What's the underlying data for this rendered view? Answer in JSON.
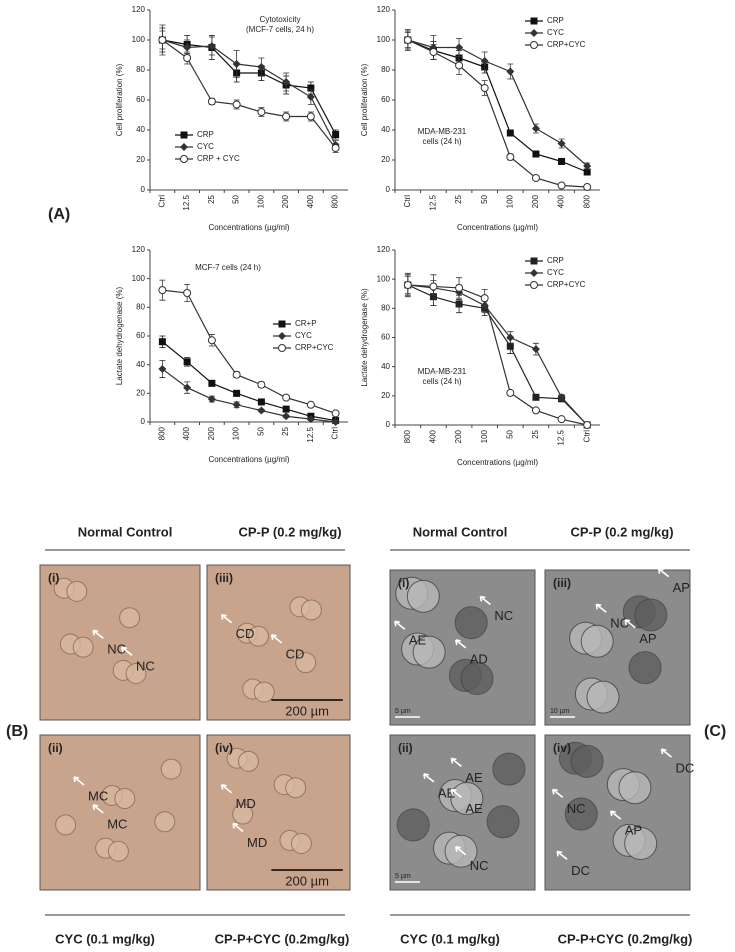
{
  "chart_data": [
    {
      "type": "line",
      "ylabel": "Cell proliferation (%)",
      "xlabel": "Concentrations (µg/ml)",
      "annotation": [
        "Cytotoxicity",
        "(MCF-7 cells, 24 h)"
      ],
      "categories": [
        "Ctrl",
        "12.5",
        "25",
        "50",
        "100",
        "200",
        "400",
        "800"
      ],
      "ylim": [
        0,
        120
      ],
      "yticks": [
        0,
        20,
        40,
        60,
        80,
        100,
        120
      ],
      "legend": "lower left",
      "series": [
        {
          "name": "CRP",
          "color": "#111111",
          "marker": "square",
          "values": [
            100,
            97,
            95,
            78,
            78,
            70,
            68,
            37
          ],
          "errors": [
            8,
            6,
            8,
            6,
            5,
            6,
            4,
            3
          ]
        },
        {
          "name": "CYC",
          "color": "#333333",
          "marker": "diamond",
          "values": [
            100,
            95,
            96,
            84,
            82,
            72,
            62,
            30
          ],
          "errors": [
            10,
            5,
            6,
            9,
            6,
            6,
            5,
            3
          ]
        },
        {
          "name": "CRP + CYC",
          "color": "#333333",
          "marker": "circle",
          "values": [
            100,
            88,
            59,
            57,
            52,
            49,
            49,
            28
          ],
          "errors": [
            6,
            4,
            2,
            3,
            3,
            3,
            3,
            3
          ]
        }
      ]
    },
    {
      "type": "line",
      "ylabel": "Cell proliferation (%)",
      "xlabel": "Concentrations (µg/ml)",
      "annotation": [
        "MDA-MB-231",
        "cells (24 h)"
      ],
      "categories": [
        "Ctrl",
        "12.5",
        "25",
        "50",
        "100",
        "200",
        "400",
        "800"
      ],
      "ylim": [
        0,
        120
      ],
      "yticks": [
        0,
        20,
        40,
        60,
        80,
        100,
        120
      ],
      "legend": "upper right",
      "series": [
        {
          "name": "CRP",
          "color": "#111111",
          "marker": "square",
          "values": [
            100,
            93,
            88,
            82,
            38,
            24,
            19,
            12
          ],
          "errors": [
            6,
            6,
            5,
            4,
            2,
            2,
            2,
            2
          ]
        },
        {
          "name": "CYC",
          "color": "#333333",
          "marker": "diamond",
          "values": [
            100,
            95,
            95,
            86,
            79,
            41,
            31,
            16
          ],
          "errors": [
            7,
            8,
            6,
            6,
            5,
            3,
            3,
            2
          ]
        },
        {
          "name": "CRP+CYC",
          "color": "#333333",
          "marker": "circle",
          "values": [
            100,
            92,
            83,
            68,
            22,
            8,
            3,
            2
          ],
          "errors": [
            5,
            5,
            6,
            5,
            2,
            1,
            1,
            1
          ]
        }
      ]
    },
    {
      "type": "line",
      "ylabel": "Lactate dehydrogenase (%)",
      "xlabel": "Concentrations (µg/ml)",
      "annotation": [
        "MCF-7 cells (24 h)"
      ],
      "categories": [
        "800",
        "400",
        "200",
        "100",
        "50",
        "25",
        "12.5",
        "Ctrl"
      ],
      "ylim": [
        0,
        120
      ],
      "yticks": [
        0,
        20,
        40,
        60,
        80,
        100,
        120
      ],
      "legend": "center right",
      "series": [
        {
          "name": "CR+P",
          "color": "#111111",
          "marker": "square",
          "values": [
            56,
            42,
            27,
            20,
            14,
            9,
            4,
            1
          ],
          "errors": [
            4,
            3,
            2,
            2,
            2,
            1,
            1,
            1
          ]
        },
        {
          "name": "CYC",
          "color": "#333333",
          "marker": "diamond",
          "values": [
            37,
            24,
            16,
            12,
            8,
            4,
            2,
            0
          ],
          "errors": [
            6,
            4,
            2,
            2,
            1,
            1,
            1,
            1
          ]
        },
        {
          "name": "CRP+CYC",
          "color": "#333333",
          "marker": "circle",
          "values": [
            92,
            90,
            57,
            33,
            26,
            17,
            12,
            6
          ],
          "errors": [
            7,
            6,
            4,
            2,
            2,
            1,
            1,
            1
          ]
        }
      ]
    },
    {
      "type": "line",
      "ylabel": "Lactate dehydrogenase (%)",
      "xlabel": "Concentrations (µg/ml)",
      "annotation": [
        "MDA-MB-231",
        "cells (24 h)"
      ],
      "categories": [
        "800",
        "400",
        "200",
        "100",
        "50",
        "25",
        "12.5",
        "Ctrl"
      ],
      "ylim": [
        0,
        120
      ],
      "yticks": [
        0,
        20,
        40,
        60,
        80,
        100,
        120
      ],
      "legend": "upper right",
      "series": [
        {
          "name": "CRP",
          "color": "#222222",
          "marker": "square",
          "values": [
            96,
            88,
            83,
            80,
            54,
            19,
            18,
            0
          ],
          "errors": [
            7,
            6,
            6,
            5,
            5,
            1,
            2,
            1
          ]
        },
        {
          "name": "CYC",
          "color": "#333333",
          "marker": "diamond",
          "values": [
            96,
            94,
            91,
            82,
            60,
            52,
            19,
            0
          ],
          "errors": [
            8,
            5,
            5,
            5,
            4,
            4,
            2,
            1
          ]
        },
        {
          "name": "CRP+CYC",
          "color": "#333333",
          "marker": "circle",
          "values": [
            96,
            95,
            94,
            87,
            22,
            10,
            4,
            0
          ],
          "errors": [
            6,
            8,
            7,
            6,
            1,
            1,
            1,
            1
          ]
        }
      ]
    }
  ],
  "figure": {
    "panel_labels": [
      "(A)",
      "(B)",
      "(C)"
    ],
    "sections": [
      {
        "headers": [
          "Normal Control",
          "CP-P (0.2 mg/kg)"
        ],
        "footers": [
          "CYC (0.1 mg/kg)",
          "CP-P+CYC (0.2mg/kg)"
        ],
        "panels": [
          {
            "tag": "(i)",
            "labels": [
              "NC",
              "NC"
            ]
          },
          {
            "tag": "(iii)",
            "labels": [
              "CD",
              "CD"
            ],
            "scale": "200 µm"
          },
          {
            "tag": "(ii)",
            "labels": [
              "MC",
              "MC"
            ]
          },
          {
            "tag": "(iv)",
            "labels": [
              "MD",
              "MD"
            ],
            "scale": "200 µm"
          }
        ]
      },
      {
        "headers": [
          "Normal Control",
          "CP-P (0.2 mg/kg)"
        ],
        "footers": [
          "CYC (0.1 mg/kg)",
          "CP-P+CYC (0.2mg/kg)"
        ],
        "panels": [
          {
            "tag": "(i)",
            "labels": [
              "NC",
              "AE",
              "AD"
            ],
            "scale": "5 µm"
          },
          {
            "tag": "(iii)",
            "labels": [
              "AP",
              "NC",
              "AP"
            ],
            "scale": "10 µm"
          },
          {
            "tag": "(ii)",
            "labels": [
              "AE",
              "AE",
              "AE",
              "NC"
            ],
            "scale": "5 µm"
          },
          {
            "tag": "(iv)",
            "labels": [
              "DC",
              "NC",
              "AP",
              "DC"
            ]
          }
        ]
      }
    ]
  }
}
